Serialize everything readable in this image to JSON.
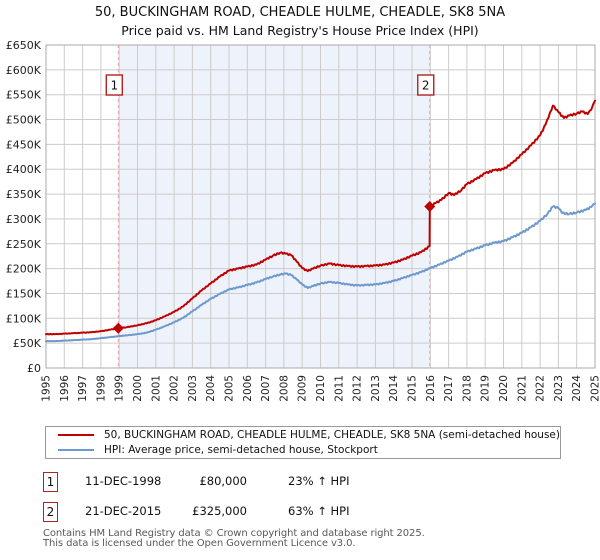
{
  "title": "50, BUCKINGHAM ROAD, CHEADLE HULME, CHEADLE, SK8 5NA",
  "subtitle": "Price paid vs. HM Land Registry's House Price Index (HPI)",
  "colors": {
    "price_paid_line": "#c00000",
    "hpi_line": "#6d99cc",
    "sale_dash_line": "#f2a0a0",
    "shaded_band": "#eef2fa",
    "grid": "#cccccc",
    "plot_border": "#aaaaaa",
    "marker_box_border": "#b22222",
    "footer_text": "#595959"
  },
  "chart_data": {
    "type": "line",
    "title": "50, BUCKINGHAM ROAD, CHEADLE HULME, CHEADLE, SK8 5NA",
    "subtitle": "Price paid vs. HM Land Registry's House Price Index (HPI)",
    "grid": true,
    "legend_position": "bottom",
    "x_axis": {
      "min": 1995,
      "max": 2025,
      "labels": [
        "1995",
        "1996",
        "1997",
        "1998",
        "1999",
        "2000",
        "2001",
        "2002",
        "2003",
        "2004",
        "2005",
        "2006",
        "2007",
        "2008",
        "2009",
        "2010",
        "2011",
        "2012",
        "2013",
        "2014",
        "2015",
        "2016",
        "2017",
        "2018",
        "2019",
        "2020",
        "2021",
        "2022",
        "2023",
        "2024",
        "2025"
      ]
    },
    "y_axis": {
      "min_k": 0,
      "max_k": 650,
      "step_k": 50,
      "unit": "GBP thousands",
      "labels": [
        "£0",
        "£50K",
        "£100K",
        "£150K",
        "£200K",
        "£250K",
        "£300K",
        "£350K",
        "£400K",
        "£450K",
        "£500K",
        "£550K",
        "£600K",
        "£650K"
      ]
    },
    "shaded_region": {
      "from_year": 1998.95,
      "to_year": 2015.97
    },
    "sales": [
      {
        "label": "1",
        "year": 1998.95,
        "price_k": 80
      },
      {
        "label": "2",
        "year": 2015.97,
        "price_k": 325
      }
    ],
    "series": [
      {
        "name": "50, BUCKINGHAM ROAD, CHEADLE HULME, CHEADLE, SK8 5NA (semi-detached house)",
        "color": "#c00000",
        "points": [
          [
            1995.0,
            68
          ],
          [
            1995.5,
            68
          ],
          [
            1996.0,
            69
          ],
          [
            1996.5,
            70
          ],
          [
            1997.0,
            71
          ],
          [
            1997.5,
            72
          ],
          [
            1998.0,
            74
          ],
          [
            1998.5,
            77
          ],
          [
            1998.95,
            80
          ],
          [
            1999.4,
            82
          ],
          [
            2000.0,
            86
          ],
          [
            2000.5,
            90
          ],
          [
            2001.0,
            96
          ],
          [
            2001.5,
            104
          ],
          [
            2002.0,
            113
          ],
          [
            2002.5,
            124
          ],
          [
            2003.0,
            140
          ],
          [
            2003.5,
            156
          ],
          [
            2004.0,
            170
          ],
          [
            2004.5,
            184
          ],
          [
            2005.0,
            196
          ],
          [
            2005.5,
            200
          ],
          [
            2006.0,
            204
          ],
          [
            2006.5,
            208
          ],
          [
            2007.0,
            218
          ],
          [
            2007.4,
            226
          ],
          [
            2007.8,
            232
          ],
          [
            2008.1,
            230
          ],
          [
            2008.4,
            227
          ],
          [
            2008.7,
            214
          ],
          [
            2009.0,
            201
          ],
          [
            2009.3,
            195
          ],
          [
            2009.6,
            200
          ],
          [
            2010.0,
            206
          ],
          [
            2010.5,
            210
          ],
          [
            2011.0,
            207
          ],
          [
            2011.5,
            205
          ],
          [
            2012.0,
            204
          ],
          [
            2012.5,
            205
          ],
          [
            2013.0,
            206
          ],
          [
            2013.5,
            208
          ],
          [
            2014.0,
            212
          ],
          [
            2014.5,
            218
          ],
          [
            2015.0,
            226
          ],
          [
            2015.5,
            233
          ],
          [
            2015.96,
            245
          ],
          [
            2015.97,
            325
          ],
          [
            2016.3,
            332
          ],
          [
            2016.6,
            338
          ],
          [
            2017.0,
            352
          ],
          [
            2017.3,
            348
          ],
          [
            2017.7,
            358
          ],
          [
            2018.0,
            370
          ],
          [
            2018.5,
            380
          ],
          [
            2019.0,
            392
          ],
          [
            2019.5,
            398
          ],
          [
            2020.0,
            400
          ],
          [
            2020.5,
            413
          ],
          [
            2021.0,
            430
          ],
          [
            2021.5,
            448
          ],
          [
            2022.0,
            468
          ],
          [
            2022.3,
            490
          ],
          [
            2022.7,
            528
          ],
          [
            2023.0,
            515
          ],
          [
            2023.3,
            503
          ],
          [
            2023.6,
            508
          ],
          [
            2024.0,
            512
          ],
          [
            2024.3,
            516
          ],
          [
            2024.6,
            511
          ],
          [
            2024.8,
            520
          ],
          [
            2025.0,
            538
          ]
        ]
      },
      {
        "name": "HPI: Average price, semi-detached house, Stockport",
        "color": "#6d99cc",
        "points": [
          [
            1995.0,
            54
          ],
          [
            1995.5,
            54
          ],
          [
            1996.0,
            55
          ],
          [
            1996.5,
            56
          ],
          [
            1997.0,
            57
          ],
          [
            1997.5,
            58
          ],
          [
            1998.0,
            60
          ],
          [
            1998.5,
            62
          ],
          [
            1998.95,
            64
          ],
          [
            1999.5,
            66
          ],
          [
            2000.0,
            68
          ],
          [
            2000.5,
            71
          ],
          [
            2001.0,
            77
          ],
          [
            2001.5,
            84
          ],
          [
            2002.0,
            92
          ],
          [
            2002.5,
            101
          ],
          [
            2003.0,
            114
          ],
          [
            2003.5,
            127
          ],
          [
            2004.0,
            139
          ],
          [
            2004.5,
            149
          ],
          [
            2005.0,
            158
          ],
          [
            2005.5,
            162
          ],
          [
            2006.0,
            167
          ],
          [
            2006.5,
            172
          ],
          [
            2007.0,
            179
          ],
          [
            2007.4,
            184
          ],
          [
            2007.8,
            188
          ],
          [
            2008.1,
            190
          ],
          [
            2008.4,
            187
          ],
          [
            2008.7,
            178
          ],
          [
            2009.0,
            168
          ],
          [
            2009.3,
            161
          ],
          [
            2009.6,
            165
          ],
          [
            2010.0,
            170
          ],
          [
            2010.5,
            173
          ],
          [
            2011.0,
            171
          ],
          [
            2011.5,
            168
          ],
          [
            2012.0,
            166
          ],
          [
            2012.5,
            167
          ],
          [
            2013.0,
            168
          ],
          [
            2013.5,
            171
          ],
          [
            2014.0,
            175
          ],
          [
            2014.5,
            181
          ],
          [
            2015.0,
            187
          ],
          [
            2015.5,
            193
          ],
          [
            2016.0,
            201
          ],
          [
            2016.5,
            208
          ],
          [
            2017.0,
            216
          ],
          [
            2017.5,
            224
          ],
          [
            2018.0,
            234
          ],
          [
            2018.5,
            240
          ],
          [
            2019.0,
            247
          ],
          [
            2019.5,
            252
          ],
          [
            2020.0,
            255
          ],
          [
            2020.5,
            263
          ],
          [
            2021.0,
            272
          ],
          [
            2021.5,
            283
          ],
          [
            2022.0,
            296
          ],
          [
            2022.4,
            310
          ],
          [
            2022.7,
            325
          ],
          [
            2023.0,
            322
          ],
          [
            2023.2,
            312
          ],
          [
            2023.6,
            310
          ],
          [
            2024.0,
            313
          ],
          [
            2024.5,
            318
          ],
          [
            2024.8,
            324
          ],
          [
            2025.0,
            331
          ]
        ]
      }
    ]
  },
  "legend": {
    "items": [
      {
        "label": "50, BUCKINGHAM ROAD, CHEADLE HULME, CHEADLE, SK8 5NA (semi-detached house)",
        "color": "#c00000"
      },
      {
        "label": "HPI: Average price, semi-detached house, Stockport",
        "color": "#6d99cc"
      }
    ]
  },
  "transactions": [
    {
      "num": "1",
      "date": "11-DEC-1998",
      "price": "£80,000",
      "hpi": "23% ↑ HPI"
    },
    {
      "num": "2",
      "date": "21-DEC-2015",
      "price": "£325,000",
      "hpi": "63% ↑ HPI"
    }
  ],
  "footer": {
    "line1": "Contains HM Land Registry data © Crown copyright and database right 2025.",
    "line2": "This data is licensed under the Open Government Licence v3.0."
  }
}
